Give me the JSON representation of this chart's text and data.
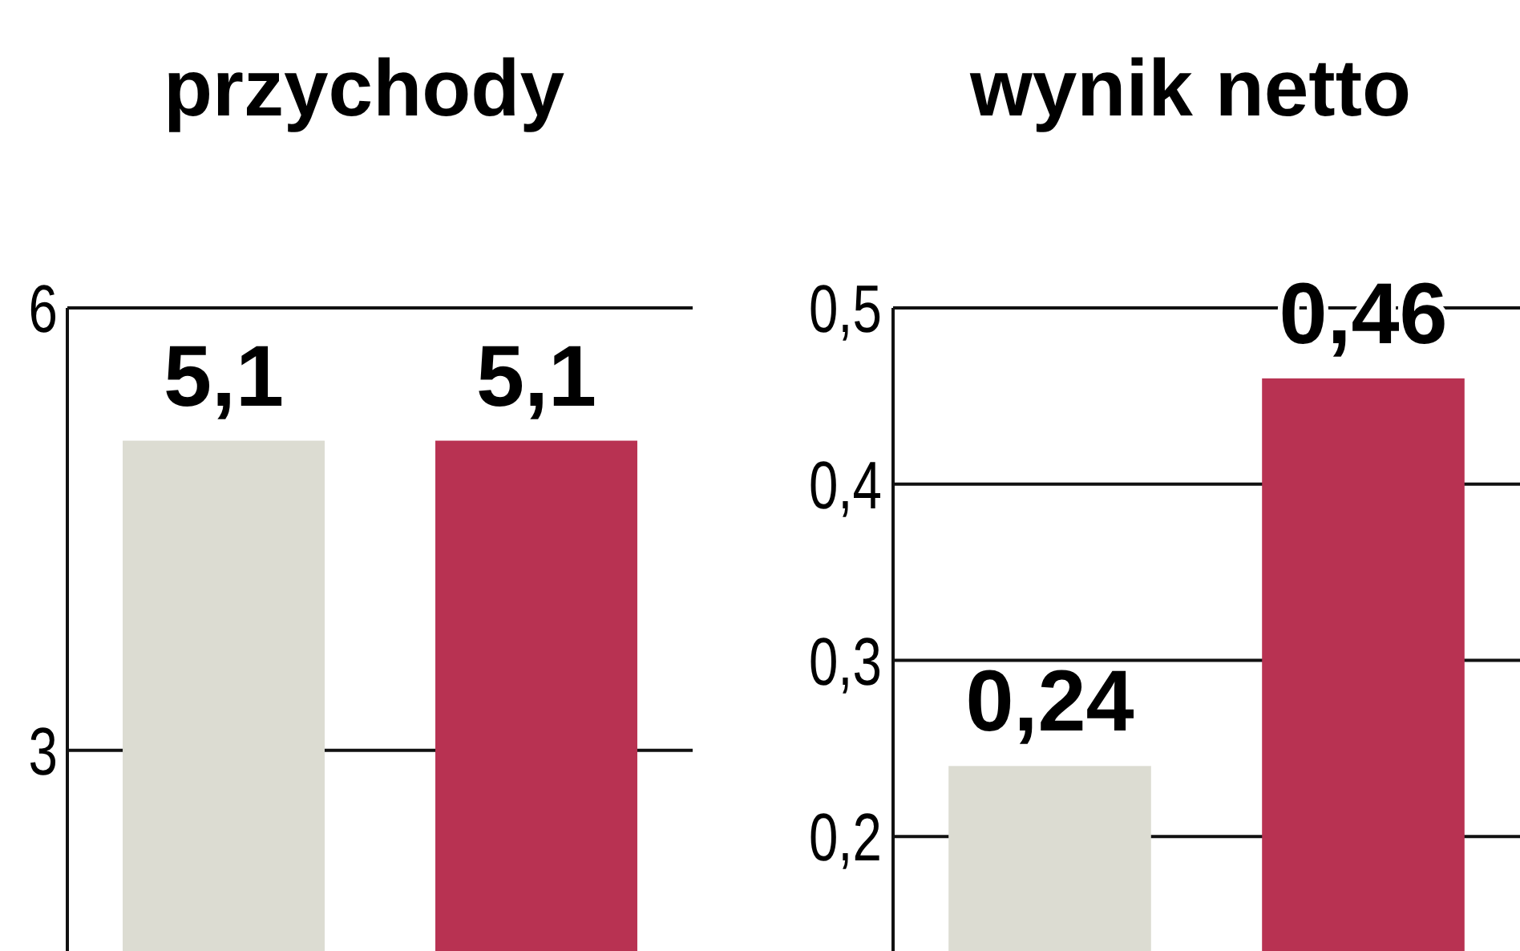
{
  "chart_data": [
    {
      "type": "bar",
      "title": "przychody",
      "categories": [
        null,
        null
      ],
      "values": [
        5.1,
        5.1
      ],
      "colors": [
        "#dcdcd2",
        "#b83252"
      ],
      "value_labels": [
        "5,1",
        "5,1"
      ],
      "ylim": [
        1.64,
        6
      ],
      "yticks": [
        {
          "value": 3,
          "label": "3"
        },
        {
          "value": 6,
          "label": "6"
        }
      ],
      "grid": "y"
    },
    {
      "type": "bar",
      "title": "wynik netto",
      "categories": [
        null,
        null
      ],
      "values": [
        0.24,
        0.46
      ],
      "colors": [
        "#dcdcd2",
        "#b83252"
      ],
      "value_labels": [
        "0,24",
        "0,46"
      ],
      "ylim": [
        0.135,
        0.5
      ],
      "yticks": [
        {
          "value": 0.2,
          "label": "0,2"
        },
        {
          "value": 0.3,
          "label": "0,3"
        },
        {
          "value": 0.4,
          "label": "0,4"
        },
        {
          "value": 0.5,
          "label": "0,5"
        }
      ],
      "grid": "y"
    }
  ]
}
